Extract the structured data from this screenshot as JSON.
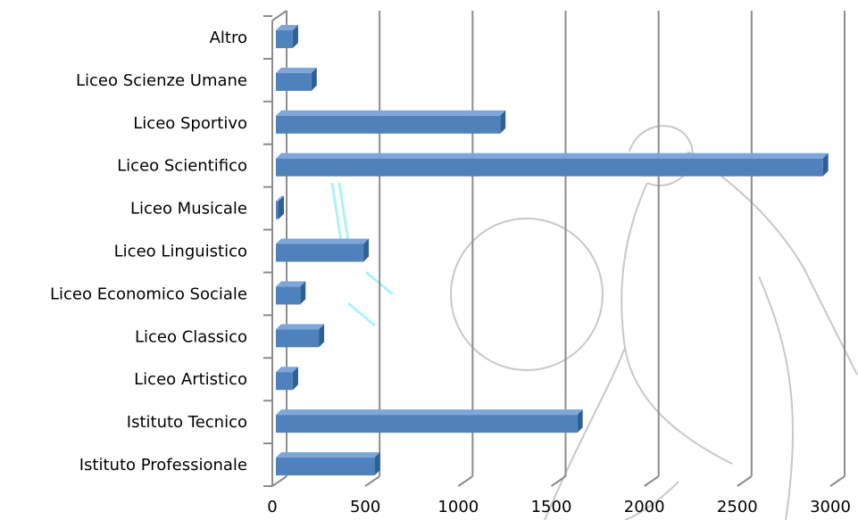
{
  "chart_data": {
    "type": "bar",
    "orientation": "horizontal",
    "style": "3d",
    "categories": [
      "Istituto Professionale",
      "Istituto Tecnico",
      "Liceo Artistico",
      "Liceo Classico",
      "Liceo Economico Sociale",
      "Liceo Linguistico",
      "Liceo Musicale",
      "Liceo Scientifico",
      "Liceo Sportivo",
      "Liceo Scienze Umane",
      "Altro"
    ],
    "values": [
      550,
      1640,
      110,
      250,
      150,
      490,
      20,
      2960,
      1225,
      210,
      110
    ],
    "xlim": [
      0,
      3000
    ],
    "xticks": [
      "0",
      "500",
      "1000",
      "1500",
      "2000",
      "2500",
      "3000"
    ],
    "grid": true,
    "legend": false,
    "bar_color": "#4f81bd",
    "bar_side_color": "#2e5f95",
    "bar_top_color": "#7fa6d8",
    "grid_color": "#8c8c8c"
  }
}
